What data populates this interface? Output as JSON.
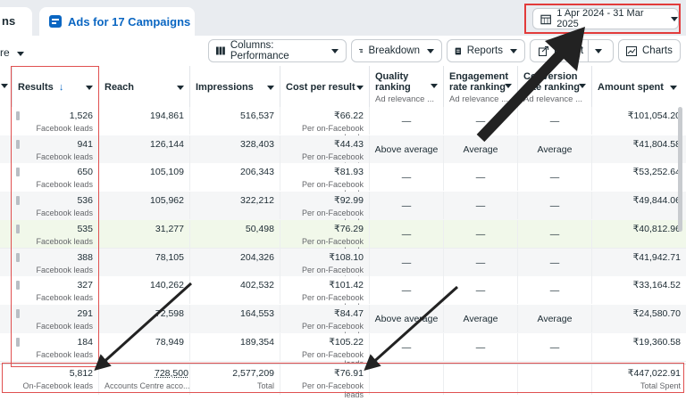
{
  "tabs": {
    "previous_fragment": "ns",
    "active_label": "Ads for 17 Campaigns"
  },
  "date_range": {
    "label": "1 Apr 2024 - 31 Mar 2025"
  },
  "toolbar": {
    "left_fragment": "re",
    "columns_label": "Columns: Performance",
    "breakdown_label": "Breakdown",
    "reports_label": "Reports",
    "export_label": "Export",
    "charts_label": "Charts"
  },
  "table": {
    "headers": {
      "results": "Results",
      "reach": "Reach",
      "impressions": "Impressions",
      "cost_per_result": "Cost per result",
      "quality_ranking": "Quality ranking",
      "quality_sub": "Ad relevance ...",
      "engagement_ranking": "Engagement rate ranking",
      "engagement_sub": "Ad relevance ...",
      "conversion_ranking": "Conversion rate ranking",
      "conversion_sub": "Ad relevance ...",
      "amount_spent": "Amount spent"
    },
    "rows": [
      {
        "results": "1,526",
        "results_sub": "Facebook leads",
        "reach": "194,861",
        "impressions": "516,537",
        "cpr": "₹66.22",
        "cpr_sub": "Per on-Facebook leads",
        "quality": "—",
        "engagement": "—",
        "conversion": "—",
        "spent": "₹101,054.20"
      },
      {
        "results": "941",
        "results_sub": "Facebook leads",
        "reach": "126,144",
        "impressions": "328,403",
        "cpr": "₹44.43",
        "cpr_sub": "Per on-Facebook leads",
        "quality": "Above average",
        "engagement": "Average",
        "conversion": "Average",
        "spent": "₹41,804.58"
      },
      {
        "results": "650",
        "results_sub": "Facebook leads",
        "reach": "105,109",
        "impressions": "206,343",
        "cpr": "₹81.93",
        "cpr_sub": "Per on-Facebook leads",
        "quality": "—",
        "engagement": "—",
        "conversion": "—",
        "spent": "₹53,252.64"
      },
      {
        "results": "536",
        "results_sub": "Facebook leads",
        "reach": "105,962",
        "impressions": "322,212",
        "cpr": "₹92.99",
        "cpr_sub": "Per on-Facebook leads",
        "quality": "—",
        "engagement": "—",
        "conversion": "—",
        "spent": "₹49,844.06"
      },
      {
        "results": "535",
        "results_sub": "Facebook leads",
        "reach": "31,277",
        "impressions": "50,498",
        "cpr": "₹76.29",
        "cpr_sub": "Per on-Facebook leads",
        "quality": "—",
        "engagement": "—",
        "conversion": "—",
        "spent": "₹40,812.96"
      },
      {
        "results": "388",
        "results_sub": "Facebook leads",
        "reach": "78,105",
        "impressions": "204,326",
        "cpr": "₹108.10",
        "cpr_sub": "Per on-Facebook leads",
        "quality": "—",
        "engagement": "—",
        "conversion": "—",
        "spent": "₹41,942.71"
      },
      {
        "results": "327",
        "results_sub": "Facebook leads",
        "reach": "140,262",
        "impressions": "402,532",
        "cpr": "₹101.42",
        "cpr_sub": "Per on-Facebook leads",
        "quality": "—",
        "engagement": "—",
        "conversion": "—",
        "spent": "₹33,164.52"
      },
      {
        "results": "291",
        "results_sub": "Facebook leads",
        "reach": "72,598",
        "impressions": "164,553",
        "cpr": "₹84.47",
        "cpr_sub": "Per on-Facebook leads",
        "quality": "Above average",
        "engagement": "Average",
        "conversion": "Average",
        "spent": "₹24,580.70"
      },
      {
        "results": "184",
        "results_sub": "Facebook leads",
        "reach": "78,949",
        "impressions": "189,354",
        "cpr": "₹105.22",
        "cpr_sub": "Per on-Facebook leads",
        "quality": "—",
        "engagement": "—",
        "conversion": "—",
        "spent": "₹19,360.58"
      }
    ],
    "totals": {
      "results": "5,812",
      "results_sub": "On-Facebook leads",
      "reach": "728,500",
      "reach_sub": "Accounts Centre acco...",
      "impressions": "2,577,209",
      "impressions_sub": "Total",
      "cpr": "₹76.91",
      "cpr_sub": "Per on-Facebook leads",
      "spent": "₹447,022.91",
      "spent_sub": "Total Spent"
    }
  },
  "colors": {
    "accent": "#0a66c2",
    "highlight_row": "#f1f8ea",
    "alt_row": "#f5f6f7",
    "annotation": "#e23b3b",
    "arrow": "#222222"
  }
}
